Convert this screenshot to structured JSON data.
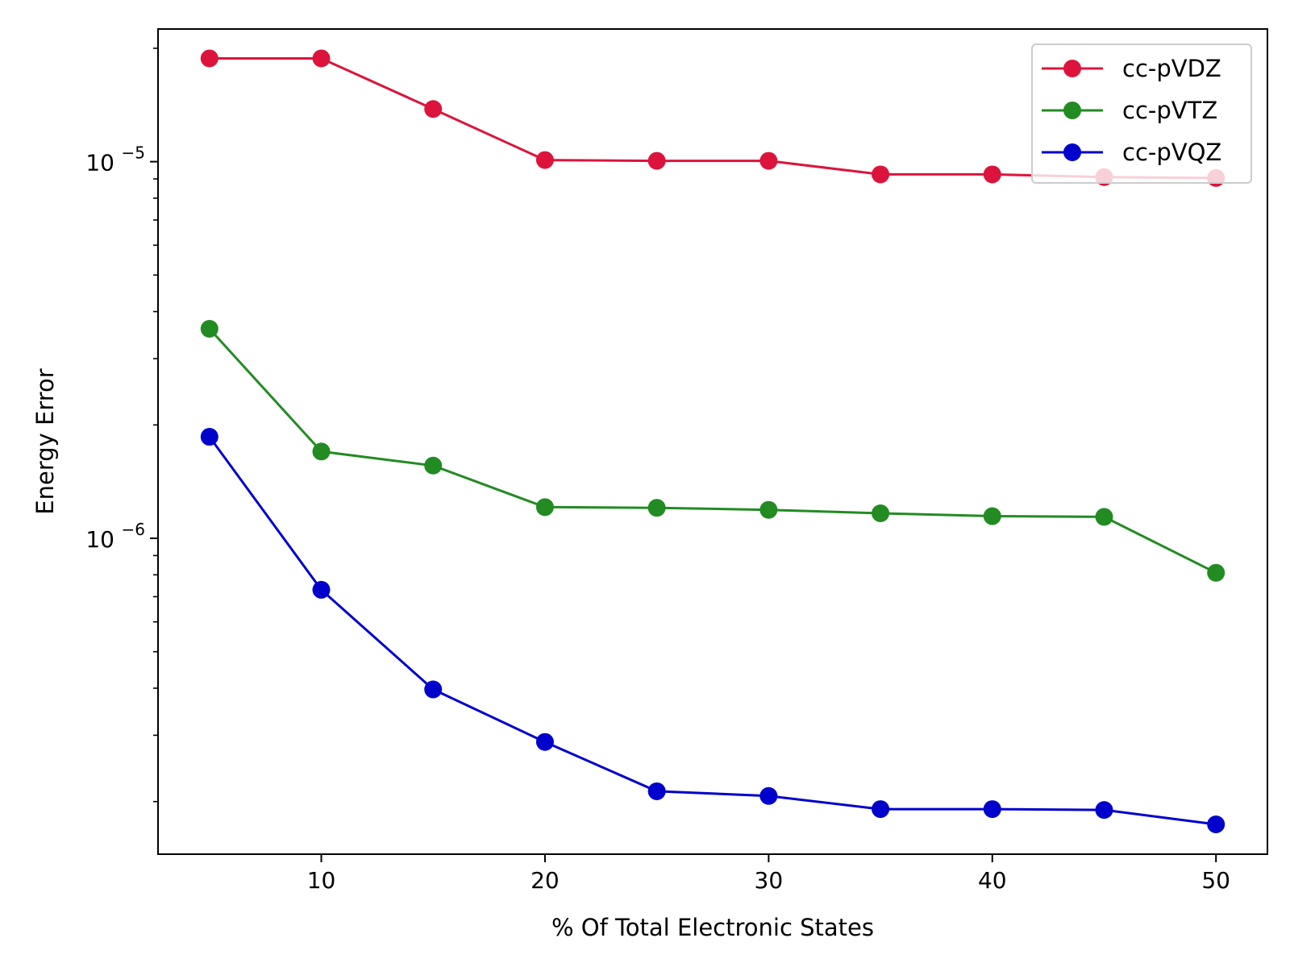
{
  "chart_data": {
    "type": "line",
    "xlabel": "% Of Total Electronic States",
    "ylabel": "Energy Error",
    "y_scale": "log",
    "x_ticks": [
      10,
      20,
      30,
      40,
      50
    ],
    "y_ticks": [
      {
        "value": 1e-05,
        "base": "10",
        "exponent": "−5"
      },
      {
        "value": 1e-06,
        "base": "10",
        "exponent": "−6"
      }
    ],
    "xlim": [
      2.7,
      52.3
    ],
    "ylim": [
      1.45e-07,
      2.25e-05
    ],
    "grid": false,
    "legend_position": "top-right",
    "x": [
      5,
      10,
      15,
      20,
      25,
      30,
      35,
      40,
      45,
      50
    ],
    "series": [
      {
        "name": "cc-pVDZ",
        "color": "#dc143c",
        "values": [
          1.88e-05,
          1.88e-05,
          1.38e-05,
          1.01e-05,
          1.005e-05,
          1.005e-05,
          9.25e-06,
          9.25e-06,
          9.1e-06,
          9.05e-06
        ]
      },
      {
        "name": "cc-pVTZ",
        "color": "#228b22",
        "values": [
          3.6e-06,
          1.7e-06,
          1.56e-06,
          1.21e-06,
          1.205e-06,
          1.19e-06,
          1.165e-06,
          1.145e-06,
          1.14e-06,
          8.1e-07
        ]
      },
      {
        "name": "cc-pVQZ",
        "color": "#0000cd",
        "values": [
          1.86e-06,
          7.3e-07,
          3.97e-07,
          2.88e-07,
          2.13e-07,
          2.07e-07,
          1.91e-07,
          1.91e-07,
          1.9e-07,
          1.74e-07
        ]
      }
    ]
  }
}
